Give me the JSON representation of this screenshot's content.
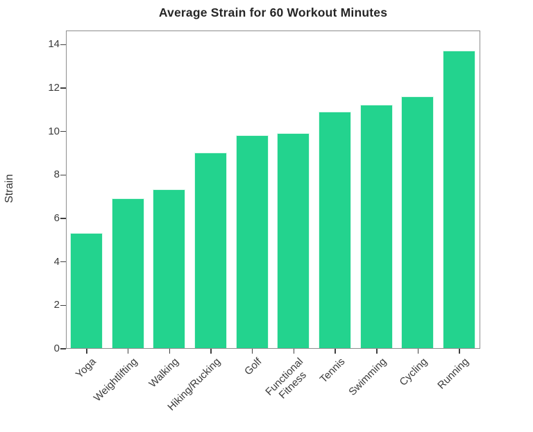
{
  "title": "Average Strain for 60 Workout Minutes",
  "chart_data": {
    "type": "bar",
    "title": "Average Strain for 60 Workout Minutes",
    "categories": [
      "Yoga",
      "Weightlifting",
      "Walking",
      "Hiking/Rucking",
      "Golf",
      "Functional\nFitness",
      "Tennis",
      "Swimming",
      "Cycling",
      "Running"
    ],
    "values": [
      5.3,
      6.9,
      7.3,
      9.0,
      9.8,
      9.9,
      10.9,
      11.2,
      11.6,
      13.7
    ],
    "xlabel": "",
    "ylabel": "Strain",
    "ylim": [
      0,
      14.7
    ],
    "yticks": [
      0,
      2,
      4,
      6,
      8,
      10,
      12,
      14
    ],
    "grid": false,
    "legend_position": "none",
    "bar_color": "#23d38e",
    "bar_edge_color": "#dcf9ec",
    "spine_color": "#8d8d8d",
    "tick_color": "#404040",
    "text_color": "#3a3a3a"
  }
}
